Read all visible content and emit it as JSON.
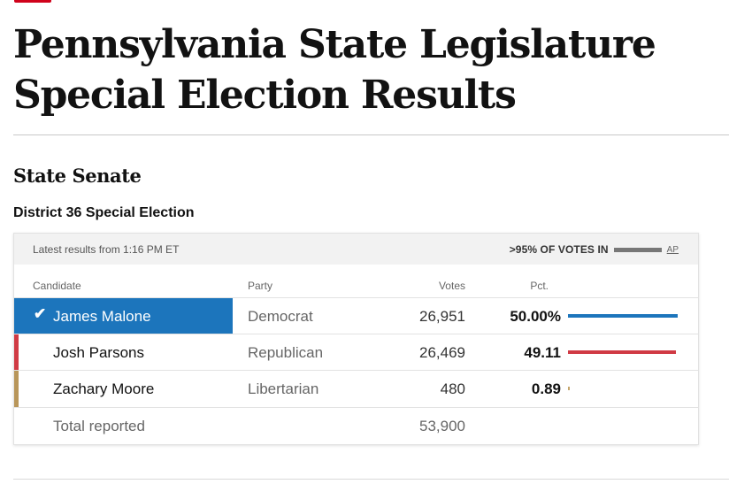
{
  "page": {
    "title": "Pennsylvania State Legislature Special Election Results",
    "section_title": "State Senate",
    "race_title": "District 36 Special Election"
  },
  "card": {
    "updated": "Latest results from 1:16 PM ET",
    "reporting": ">95% OF VOTES IN",
    "reporting_fraction": 0.95,
    "source": "AP"
  },
  "table": {
    "headers": {
      "candidate": "Candidate",
      "party": "Party",
      "votes": "Votes",
      "pct": "Pct."
    },
    "rows": [
      {
        "name": "James Malone",
        "party": "Democrat",
        "votes": "26,951",
        "pct": "50.00%",
        "pct_value": 50.0,
        "color": "#1c75bc",
        "winner": true
      },
      {
        "name": "Josh Parsons",
        "party": "Republican",
        "votes": "26,469",
        "pct": "49.11",
        "pct_value": 49.11,
        "color": "#d03a44",
        "winner": false
      },
      {
        "name": "Zachary Moore",
        "party": "Libertarian",
        "votes": "480",
        "pct": "0.89",
        "pct_value": 0.89,
        "color": "#c5a56a",
        "winner": false
      }
    ],
    "total": {
      "label": "Total reported",
      "votes": "53,900"
    }
  },
  "icons": {
    "winner": "checkmark-icon"
  },
  "colors": {
    "accent": "#d0021b",
    "democrat": "#1c75bc",
    "republican": "#d03a44",
    "libertarian": "#c5a56a",
    "libertarian_stripe": "#b8965a"
  }
}
